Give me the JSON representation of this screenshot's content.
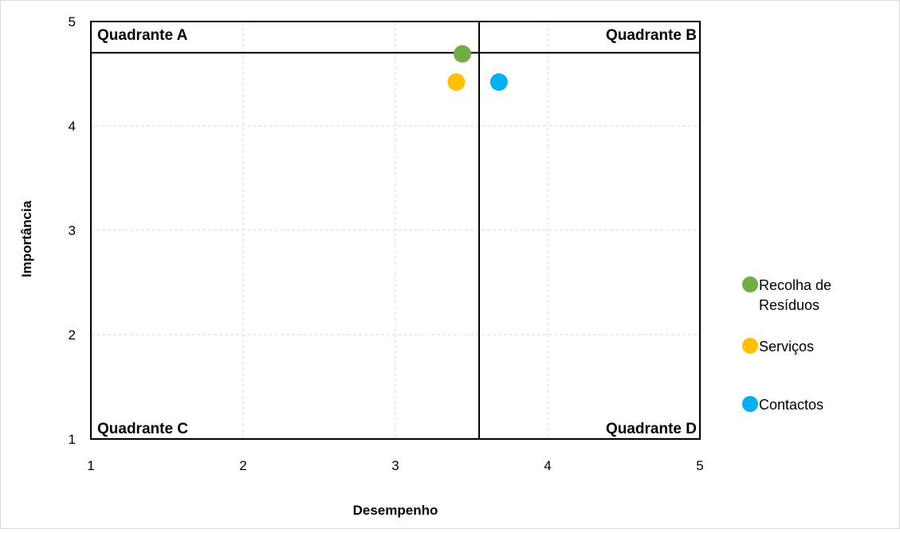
{
  "chart_data": {
    "type": "scatter",
    "xlabel": "Desempenho",
    "ylabel": "Importância",
    "xlim": [
      1,
      5
    ],
    "ylim": [
      1,
      5
    ],
    "x_ticks": [
      "1",
      "2",
      "3",
      "4",
      "5"
    ],
    "y_ticks": [
      "1",
      "2",
      "3",
      "4",
      "5"
    ],
    "grid": true,
    "legend_position": "right",
    "quadrant_dividers": {
      "x": 3.55,
      "y": 4.7
    },
    "quadrant_labels": {
      "top_left": "Quadrante A",
      "top_right": "Quadrante B",
      "bottom_left": "Quadrante C",
      "bottom_right": "Quadrante D"
    },
    "series": [
      {
        "name": "Recolha de Resíduos",
        "name_lines": [
          "Recolha de",
          "Resíduos"
        ],
        "color": "#70ad47",
        "x": 3.44,
        "y": 4.69
      },
      {
        "name": "Serviços",
        "name_lines": [
          "Serviços"
        ],
        "color": "#ffc000",
        "x": 3.4,
        "y": 4.42
      },
      {
        "name": "Contactos",
        "name_lines": [
          "Contactos"
        ],
        "color": "#00b0f0",
        "x": 3.68,
        "y": 4.42
      }
    ]
  }
}
